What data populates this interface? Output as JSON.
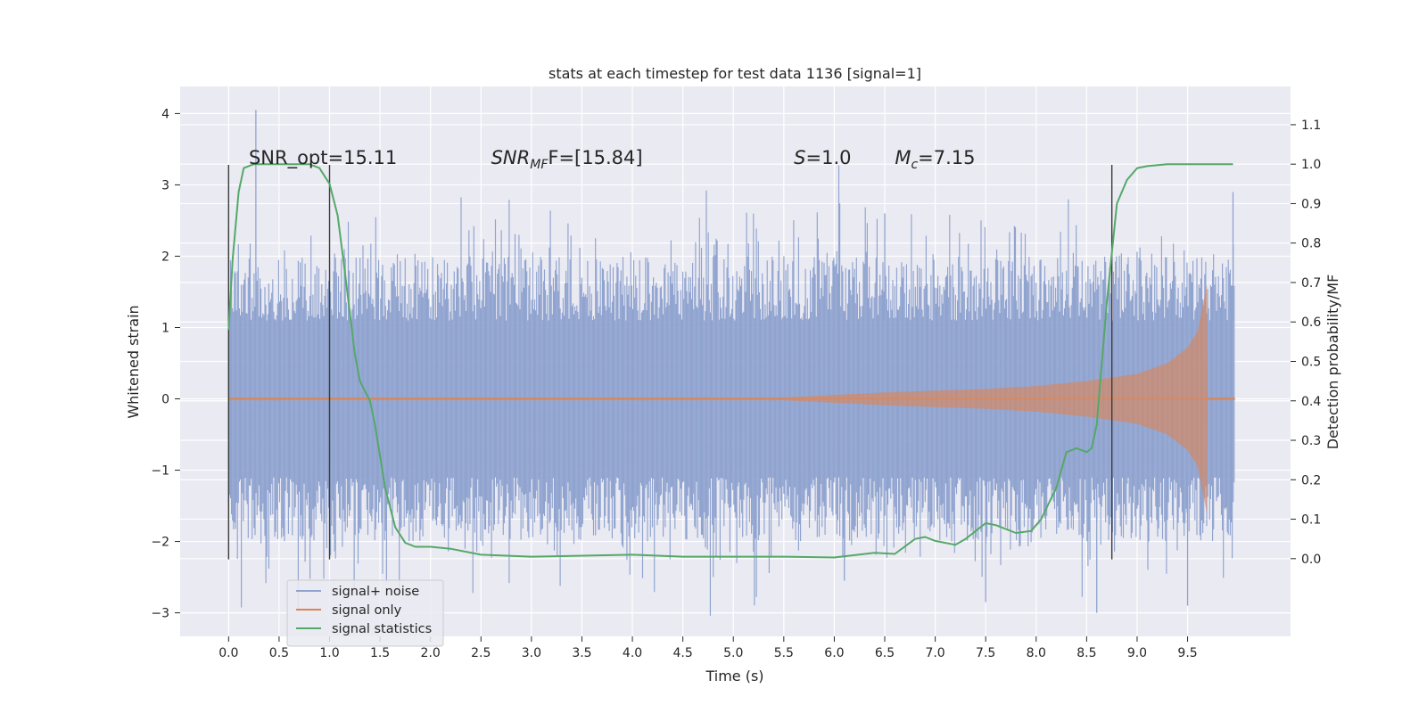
{
  "chart_data": {
    "type": "line",
    "title": "stats at each timestep for test data 1136 [signal=1]",
    "xlabel": "Time (s)",
    "ylabel_left": "Whitened strain",
    "ylabel_right": "Detection probability/MF",
    "xlim": [
      -0.48,
      10.52
    ],
    "ylim_left": [
      -3.33,
      4.38
    ],
    "ylim_right": [
      -0.197,
      1.197
    ],
    "x_ticks": [
      0.0,
      0.5,
      1.0,
      1.5,
      2.0,
      2.5,
      3.0,
      3.5,
      4.0,
      4.5,
      5.0,
      5.5,
      6.0,
      6.5,
      7.0,
      7.5,
      8.0,
      8.5,
      9.0,
      9.5
    ],
    "x_tick_labels": [
      "0.0",
      "0.5",
      "1.0",
      "1.5",
      "2.0",
      "2.5",
      "3.0",
      "3.5",
      "4.0",
      "4.5",
      "5.0",
      "5.5",
      "6.0",
      "6.5",
      "7.0",
      "7.5",
      "8.0",
      "8.5",
      "9.0",
      "9.5"
    ],
    "y_left_ticks": [
      4,
      3,
      2,
      1,
      0,
      -1,
      -2,
      -3
    ],
    "y_left_tick_labels": [
      "4",
      "3",
      "2",
      "1",
      "0",
      "−1",
      "−2",
      "−3"
    ],
    "y_right_ticks": [
      1.1,
      1.0,
      0.9,
      0.8,
      0.7,
      0.6,
      0.5,
      0.4,
      0.3,
      0.2,
      0.1,
      0.0
    ],
    "y_right_tick_labels": [
      "1.1",
      "1.0",
      "0.9",
      "0.8",
      "0.7",
      "0.6",
      "0.5",
      "0.4",
      "0.3",
      "0.2",
      "0.1",
      "0.0"
    ],
    "grid": true,
    "legend_position": "lower-left",
    "series": [
      {
        "name": "signal+ noise",
        "axis": "left",
        "color": "#8fa3cf",
        "x_range": [
          0.0,
          9.97
        ],
        "envelope_core": 1.1,
        "envelope_peak": 3.0,
        "peaks": [
          {
            "x": 0.27,
            "y": 4.05
          },
          {
            "x": 0.0,
            "y": 2.4
          },
          {
            "x": 6.1,
            "y": -2.55
          },
          {
            "x": 6.5,
            "y": 2.6
          },
          {
            "x": 7.5,
            "y": -2.85
          },
          {
            "x": 8.6,
            "y": -3.0
          },
          {
            "x": 9.5,
            "y": -2.9
          },
          {
            "x": 9.95,
            "y": 2.9
          }
        ]
      },
      {
        "name": "signal only",
        "axis": "left",
        "color": "#dd8452",
        "chirp_amplitude": {
          "x": [
            0.0,
            5.5,
            6.5,
            7.5,
            8.0,
            8.5,
            9.0,
            9.3,
            9.5,
            9.6,
            9.65,
            9.69,
            9.7,
            9.97
          ],
          "y": [
            0.02,
            0.02,
            0.09,
            0.14,
            0.18,
            0.25,
            0.35,
            0.5,
            0.72,
            0.95,
            1.3,
            1.6,
            0.02,
            0.02
          ]
        }
      },
      {
        "name": "signal statistics",
        "axis": "right",
        "color": "#55a868",
        "x": [
          0.0,
          0.04,
          0.1,
          0.15,
          0.25,
          0.4,
          0.6,
          0.8,
          0.9,
          1.0,
          1.08,
          1.15,
          1.25,
          1.3,
          1.4,
          1.45,
          1.55,
          1.65,
          1.75,
          1.85,
          2.0,
          2.2,
          2.5,
          3.0,
          4.0,
          4.5,
          5.0,
          5.5,
          6.0,
          6.4,
          6.6,
          6.8,
          6.9,
          7.0,
          7.2,
          7.3,
          7.5,
          7.6,
          7.8,
          7.95,
          8.05,
          8.2,
          8.3,
          8.4,
          8.5,
          8.55,
          8.6,
          8.7,
          8.8,
          8.9,
          9.0,
          9.1,
          9.3,
          9.5,
          9.7,
          9.95
        ],
        "values": [
          0.58,
          0.76,
          0.93,
          0.99,
          1.0,
          1.0,
          1.0,
          1.0,
          0.99,
          0.95,
          0.87,
          0.73,
          0.52,
          0.45,
          0.4,
          0.34,
          0.18,
          0.08,
          0.04,
          0.03,
          0.03,
          0.025,
          0.01,
          0.005,
          0.01,
          0.005,
          0.005,
          0.005,
          0.003,
          0.015,
          0.012,
          0.05,
          0.055,
          0.045,
          0.035,
          0.05,
          0.09,
          0.085,
          0.065,
          0.07,
          0.1,
          0.18,
          0.27,
          0.28,
          0.27,
          0.28,
          0.34,
          0.65,
          0.9,
          0.96,
          0.99,
          0.995,
          1.0,
          1.0,
          1.0,
          1.0
        ]
      }
    ],
    "vertical_markers": [
      {
        "x": 0.0,
        "y_top": 3.28,
        "y_bottom": -2.25
      },
      {
        "x": 1.0,
        "y_top": 3.28,
        "y_bottom": -2.25
      },
      {
        "x": 8.75,
        "y_top": 3.28,
        "y_bottom": -2.25
      }
    ],
    "annotations": [
      {
        "key": "snr_opt",
        "text": "SNR_opt=15.11",
        "x": 0.2,
        "y": 3.29
      },
      {
        "key": "snr_mf",
        "base": "SNR",
        "sub": "MF",
        "tail": "F=[15.84]",
        "x": 2.6,
        "y": 3.29
      },
      {
        "key": "s_val",
        "base": "S",
        "tail": "=1.0",
        "x": 5.6,
        "y": 3.29
      },
      {
        "key": "mc_val",
        "base": "M",
        "sub": "c",
        "tail": "=7.15",
        "x": 6.6,
        "y": 3.29
      }
    ]
  }
}
